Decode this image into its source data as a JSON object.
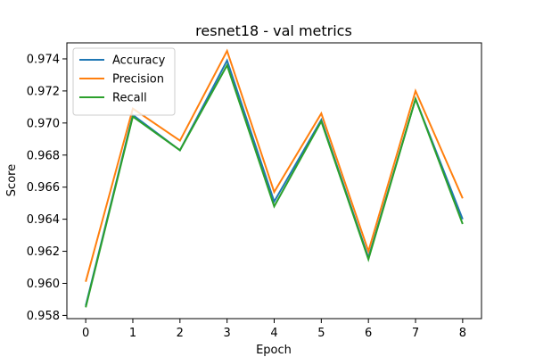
{
  "chart_data": {
    "type": "line",
    "title": "resnet18 - val metrics",
    "xlabel": "Epoch",
    "ylabel": "Score",
    "x": [
      0,
      1,
      2,
      3,
      4,
      5,
      6,
      7,
      8
    ],
    "xticks": [
      "0",
      "1",
      "2",
      "3",
      "4",
      "5",
      "6",
      "7",
      "8"
    ],
    "yticks": [
      "0.958",
      "0.960",
      "0.962",
      "0.964",
      "0.966",
      "0.968",
      "0.970",
      "0.972",
      "0.974"
    ],
    "xlim": [
      -0.4,
      8.4
    ],
    "ylim": [
      0.9578,
      0.975
    ],
    "grid": false,
    "legend": "upper-left",
    "series": [
      {
        "name": "Accuracy",
        "color": "#1f77b4",
        "values": [
          0.9586,
          0.9705,
          0.9683,
          0.9739,
          0.9651,
          0.9702,
          0.9616,
          0.9715,
          0.964
        ]
      },
      {
        "name": "Precision",
        "color": "#ff7f0e",
        "values": [
          0.9601,
          0.9709,
          0.9689,
          0.9745,
          0.9657,
          0.9706,
          0.962,
          0.972,
          0.9653
        ]
      },
      {
        "name": "Recall",
        "color": "#2ca02c",
        "values": [
          0.9585,
          0.9704,
          0.9683,
          0.9736,
          0.9648,
          0.9701,
          0.9615,
          0.9715,
          0.9637
        ]
      }
    ]
  }
}
